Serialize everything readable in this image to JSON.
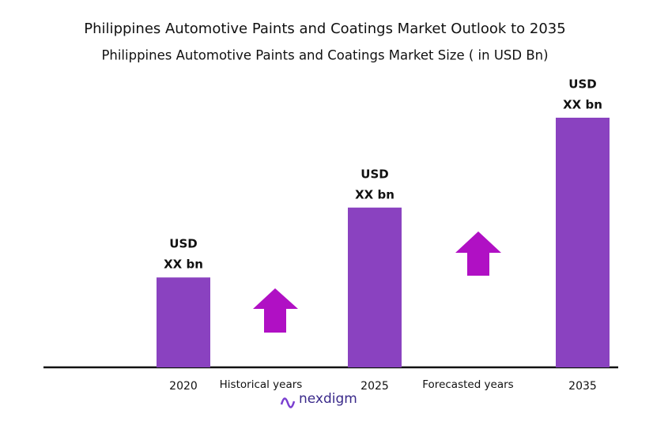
{
  "chart_data": {
    "type": "bar",
    "title": "Philippines Automotive Paints and Coatings Market Outlook to 2035",
    "subtitle": "Philippines   Automotive Paints and Coatings Market Size  ( in USD Bn)",
    "categories": [
      "2020",
      "2025",
      "2035"
    ],
    "values": [
      36,
      64,
      100
    ],
    "value_labels": [
      [
        "USD",
        "XX bn"
      ],
      [
        "USD",
        "XX bn"
      ],
      [
        "USD",
        "XX bn"
      ]
    ],
    "color": "#8a42c0",
    "ylim": [
      0,
      100
    ],
    "annotations": [
      "Historical years",
      "Forecasted years"
    ],
    "arrow_color": "#b010c4"
  },
  "logo": "nexdigm"
}
